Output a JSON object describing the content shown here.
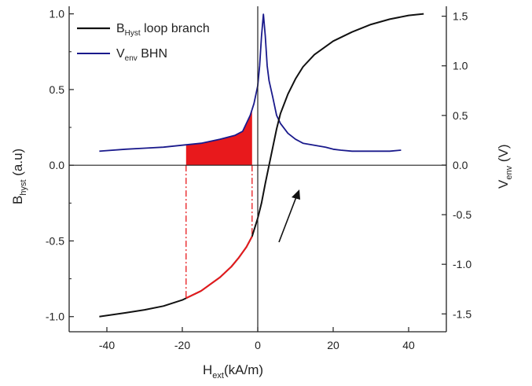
{
  "chart_data": {
    "type": "line",
    "xlabel": {
      "main": "H",
      "sub": "ext",
      "rest": "(kA/m)"
    },
    "ylabel_left": {
      "main": "B",
      "sub": "hyst",
      "rest": " (a.u)"
    },
    "ylabel_right": {
      "main": "V",
      "sub": "env",
      "rest": " (V)"
    },
    "xlim": [
      -50,
      50
    ],
    "ylim_left": [
      -1.1,
      1.05
    ],
    "ylim_right": [
      -1.68,
      1.6
    ],
    "x_ticks": [
      -40,
      -20,
      0,
      20,
      40
    ],
    "x_tick_labels": [
      "-40",
      "-20",
      "0",
      "20",
      "40"
    ],
    "y_left_ticks": [
      -1.0,
      -0.5,
      0.0,
      0.5,
      1.0
    ],
    "y_left_tick_labels": [
      "-1.0",
      "-0.5",
      "0.0",
      "0.5",
      "1.0"
    ],
    "y_right_ticks": [
      -1.5,
      -1.0,
      -0.5,
      0.0,
      0.5,
      1.0,
      1.5
    ],
    "y_right_tick_labels": [
      "-1.5",
      "-1.0",
      "-0.5",
      "0.0",
      "0.5",
      "1.0",
      "1.5"
    ],
    "legend_position": "top-left",
    "grid": false,
    "zero_lines": true,
    "series": [
      {
        "legend_main": "B",
        "legend_sub": "Hyst",
        "legend_rest": " loop branch",
        "axis": "left",
        "color": "#111111",
        "x": [
          -42,
          -35,
          -30,
          -25,
          -20,
          -15,
          -10,
          -7,
          -5,
          -3,
          -1.5,
          0,
          1,
          2,
          3,
          4,
          5,
          6,
          8,
          10,
          12,
          15,
          20,
          25,
          30,
          35,
          40,
          44
        ],
        "y": [
          -1.0,
          -0.975,
          -0.955,
          -0.93,
          -0.89,
          -0.83,
          -0.74,
          -0.67,
          -0.61,
          -0.54,
          -0.47,
          -0.35,
          -0.25,
          -0.12,
          0.0,
          0.12,
          0.24,
          0.34,
          0.47,
          0.57,
          0.65,
          0.73,
          0.82,
          0.88,
          0.93,
          0.965,
          0.99,
          1.0
        ]
      },
      {
        "legend_main": "V",
        "legend_sub": "env",
        "legend_rest": " BHN",
        "axis": "right",
        "color": "#1a1a8c",
        "x": [
          -42,
          -35,
          -30,
          -25,
          -20,
          -15,
          -10,
          -6,
          -4,
          -2,
          -1,
          0,
          0.5,
          1,
          1.5,
          2,
          2.5,
          3,
          4,
          5,
          6,
          8,
          10,
          12,
          15,
          18,
          20,
          22,
          25,
          30,
          35,
          38
        ],
        "y": [
          0.14,
          0.16,
          0.17,
          0.18,
          0.2,
          0.22,
          0.26,
          0.3,
          0.34,
          0.5,
          0.62,
          0.8,
          1.0,
          1.3,
          1.52,
          1.3,
          1.0,
          0.85,
          0.68,
          0.5,
          0.42,
          0.32,
          0.26,
          0.22,
          0.2,
          0.18,
          0.16,
          0.15,
          0.14,
          0.14,
          0.14,
          0.15
        ]
      }
    ],
    "highlight": {
      "color": "#e8191c",
      "x_from": -19,
      "x_to": -1.5
    }
  }
}
